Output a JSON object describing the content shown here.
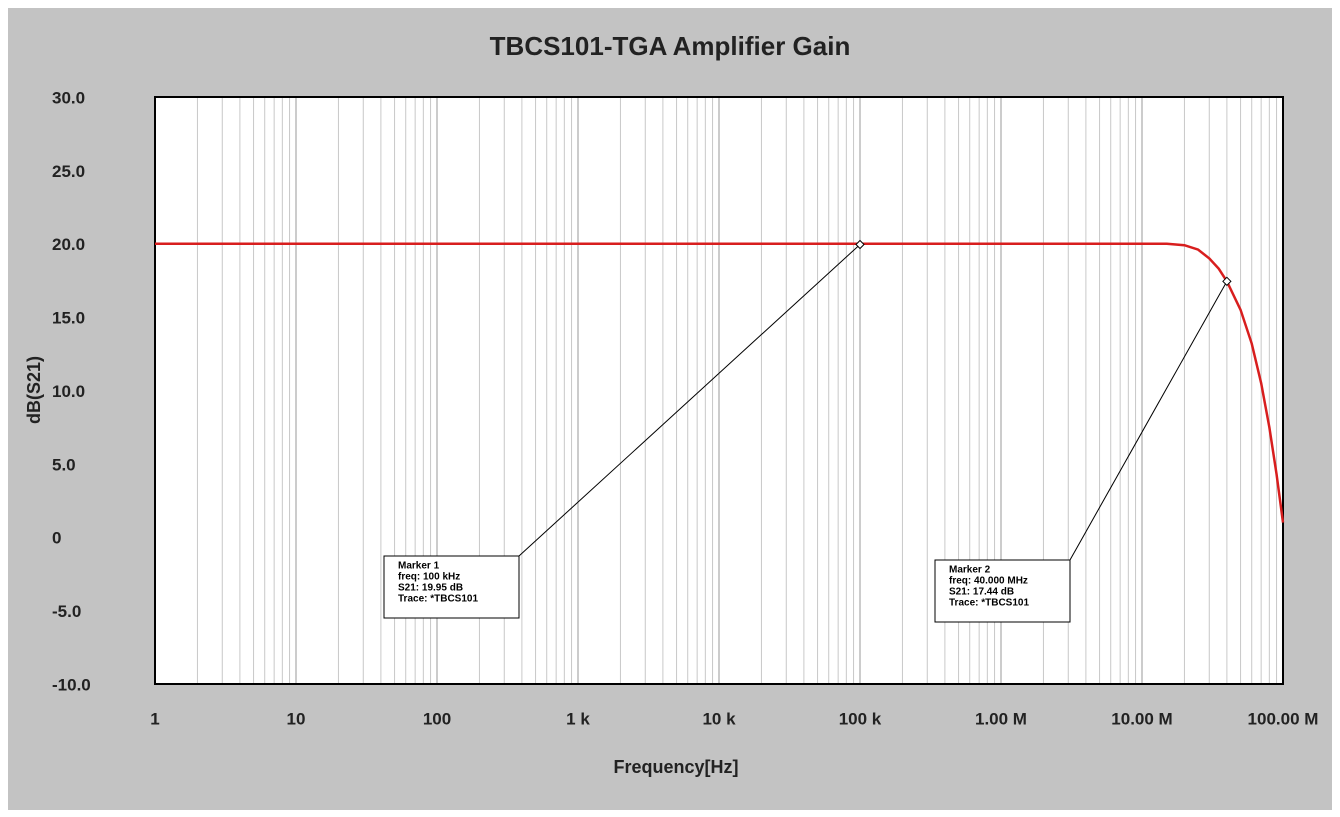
{
  "chart_data": {
    "type": "line",
    "title": "TBCS101-TGA Amplifier Gain",
    "xlabel": "Frequency[Hz]",
    "ylabel": "dB(S21)",
    "xscale": "log",
    "x": [
      1,
      10,
      100,
      1000,
      10000,
      100000,
      1000000,
      10000000,
      15000000,
      20000000,
      25000000,
      30000000,
      35000000,
      40000000,
      50000000,
      60000000,
      70000000,
      80000000,
      90000000,
      100000000
    ],
    "values": [
      20,
      20,
      20,
      20,
      20,
      20,
      20,
      20,
      20,
      19.9,
      19.6,
      19.0,
      18.3,
      17.44,
      15.5,
      13.2,
      10.5,
      7.5,
      4.3,
      1
    ],
    "color": "#d81e1e",
    "xlim": [
      1,
      100000000
    ],
    "ylim": [
      -10,
      30
    ],
    "xticks": [
      1,
      10,
      100,
      {
        "value": 1000,
        "label": "1   k"
      },
      {
        "value": 10000,
        "label": "10   k"
      },
      {
        "value": 100000,
        "label": "100 k"
      },
      {
        "value": 1000000,
        "label": "1.00 M"
      },
      {
        "value": 10000000,
        "label": "10.00 M"
      },
      {
        "value": 100000000,
        "label": "100.00 M"
      }
    ],
    "yticks": [
      {
        "value": 30,
        "label": "30.0"
      },
      {
        "value": 25,
        "label": "25.0"
      },
      {
        "value": 20,
        "label": "20.0"
      },
      {
        "value": 15,
        "label": "15.0"
      },
      {
        "value": 10,
        "label": "10.0"
      },
      {
        "value": 5,
        "label": "5.0"
      },
      0,
      {
        "value": -5,
        "label": "-5.0"
      },
      {
        "value": -10,
        "label": "-10.0"
      }
    ],
    "xgrid": true,
    "minor_grid": true,
    "ygrid": false,
    "annotations": [
      {
        "x": 100000,
        "y": 19.95,
        "text": [
          "Marker 1",
          "freq: 100 kHz",
          " S21: 19.95  dB",
          "Trace: *TBCS101"
        ]
      },
      {
        "x": 40000000,
        "y": 17.44,
        "text": [
          "Marker 2",
          "freq: 40.000 MHz",
          " S21: 17.44  dB",
          "Trace: *TBCS101"
        ]
      }
    ]
  }
}
